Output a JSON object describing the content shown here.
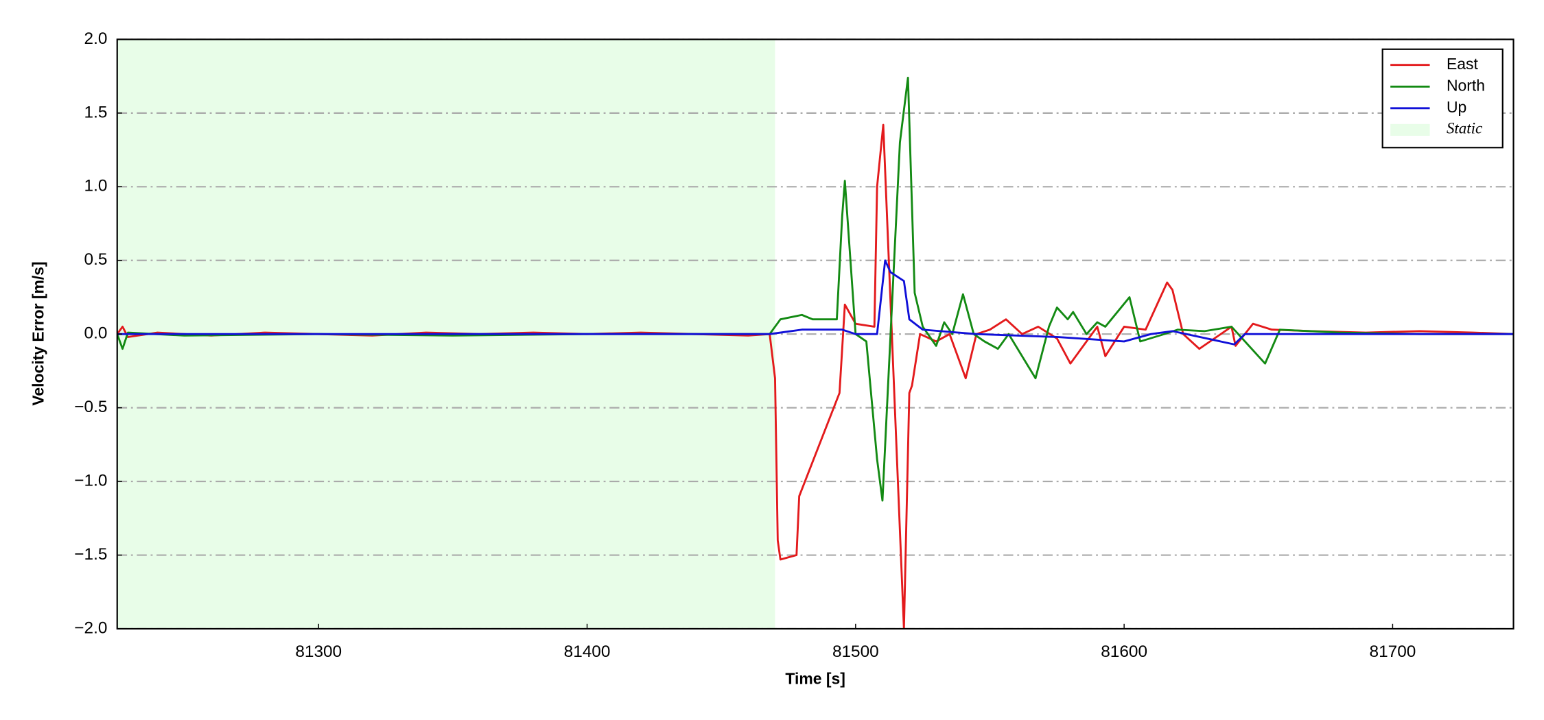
{
  "chart_data": {
    "type": "line",
    "x_label": "Time [s]",
    "y_label": "Velocity Error [m/s]",
    "xlim": [
      81225,
      81745
    ],
    "ylim": [
      -2,
      2
    ],
    "xticks": [
      81300,
      81400,
      81500,
      81600,
      81700
    ],
    "yticks": [
      {
        "value": -2,
        "label": "−2.0"
      },
      {
        "value": -1.5,
        "label": "−1.5"
      },
      {
        "value": -1,
        "label": "−1.0"
      },
      {
        "value": -0.5,
        "label": "−0.5"
      },
      {
        "value": 0,
        "label": "0.0"
      },
      {
        "value": 0.5,
        "label": "0.5"
      },
      {
        "value": 1,
        "label": "1.0"
      },
      {
        "value": 1.5,
        "label": "1.5"
      },
      {
        "value": 2,
        "label": "2.0"
      }
    ],
    "grid": true,
    "legend": "upper right",
    "shade": {
      "name": "Static",
      "x": [
        81225,
        81470
      ],
      "color": "#e8fde8"
    },
    "series": [
      {
        "name": "East",
        "color": "#e31a1c",
        "x": [
          81225,
          81227,
          81229,
          81240,
          81260,
          81280,
          81300,
          81320,
          81340,
          81360,
          81380,
          81400,
          81420,
          81440,
          81460,
          81468,
          81470,
          81471,
          81472,
          81478,
          81479,
          81494,
          81496,
          81500,
          81507,
          81508,
          81510.3,
          81518,
          81520,
          81521,
          81524,
          81530,
          81535,
          81541,
          81545,
          81550,
          81556,
          81562,
          81568,
          81575,
          81580,
          81590,
          81593,
          81600,
          81608,
          81616,
          81618,
          81622,
          81628,
          81640,
          81641.5,
          81648,
          81655,
          81670,
          81690,
          81710,
          81730,
          81745
        ],
        "values": [
          0,
          0.05,
          -0.02,
          0.01,
          -0.01,
          0.01,
          0,
          -0.01,
          0.01,
          0,
          0.01,
          0,
          0.01,
          0,
          -0.01,
          0,
          -0.3,
          -1.4,
          -1.53,
          -1.5,
          -1.1,
          -0.4,
          0.2,
          0.07,
          0.05,
          1.0,
          1.42,
          -2.0,
          -0.4,
          -0.35,
          0,
          -0.05,
          0,
          -0.3,
          0,
          0.03,
          0.1,
          0,
          0.05,
          -0.03,
          -0.2,
          0.05,
          -0.15,
          0.05,
          0.03,
          0.35,
          0.3,
          0,
          -0.1,
          0.05,
          -0.08,
          0.07,
          0.03,
          0.02,
          0.01,
          0.02,
          0.01,
          0
        ]
      },
      {
        "name": "North",
        "color": "#138a13",
        "x": [
          81225,
          81227,
          81229,
          81250,
          81300,
          81350,
          81400,
          81450,
          81468,
          81472,
          81480,
          81484,
          81493,
          81495,
          81496,
          81500,
          81504,
          81508,
          81510,
          81516.5,
          81519.5,
          81522,
          81525,
          81530,
          81533,
          81536,
          81540,
          81544,
          81548,
          81553,
          81557,
          81567,
          81572,
          81575,
          81579,
          81581,
          81586,
          81590,
          81593,
          81602,
          81606,
          81615,
          81620,
          81630,
          81640,
          81652.5,
          81658,
          81680,
          81710,
          81745
        ],
        "values": [
          0,
          -0.1,
          0.01,
          -0.01,
          0,
          -0.01,
          0,
          0,
          0,
          0.1,
          0.13,
          0.1,
          0.1,
          0.8,
          1.04,
          0,
          -0.05,
          -0.85,
          -1.13,
          1.3,
          1.74,
          0.28,
          0.05,
          -0.08,
          0.08,
          0,
          0.27,
          0,
          -0.05,
          -0.1,
          0,
          -0.3,
          0.05,
          0.18,
          0.1,
          0.15,
          0,
          0.08,
          0.05,
          0.25,
          -0.05,
          0,
          0.03,
          0.02,
          0.05,
          -0.2,
          0.03,
          0.01,
          0,
          0
        ]
      },
      {
        "name": "Up",
        "color": "#1010d8",
        "x": [
          81225,
          81300,
          81400,
          81468,
          81480,
          81495,
          81500,
          81508,
          81511,
          81513,
          81518,
          81520,
          81525,
          81545,
          81575,
          81600,
          81610,
          81618,
          81641,
          81645,
          81700,
          81745
        ],
        "values": [
          0,
          0,
          0,
          0,
          0.03,
          0.03,
          0,
          0,
          0.5,
          0.42,
          0.36,
          0.1,
          0.03,
          0,
          -0.02,
          -0.05,
          0,
          0.02,
          -0.07,
          0,
          0,
          0
        ]
      }
    ]
  }
}
